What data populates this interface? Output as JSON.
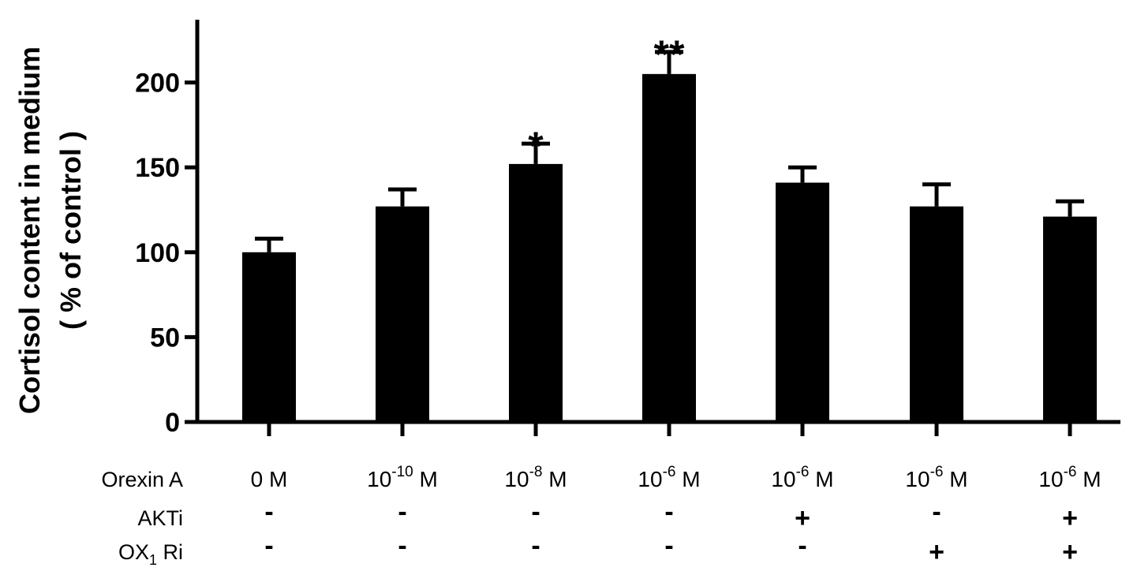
{
  "chart_data": {
    "type": "bar",
    "ylabel_line1": "Cortisol content in medium",
    "ylabel_line2": "( % of control )",
    "ylim": [
      0,
      230
    ],
    "yticks": [
      0,
      50,
      100,
      150,
      200
    ],
    "legend": "none",
    "grid": false,
    "categories": [
      {
        "base": "0 M",
        "exp": "",
        "unit": ""
      },
      {
        "base": "10",
        "exp": "-10",
        "unit": " M"
      },
      {
        "base": "10",
        "exp": "-8",
        "unit": " M"
      },
      {
        "base": "10",
        "exp": "-6",
        "unit": " M"
      },
      {
        "base": "10",
        "exp": "-6",
        "unit": " M"
      },
      {
        "base": "10",
        "exp": "-6",
        "unit": " M"
      },
      {
        "base": "10",
        "exp": "-6",
        "unit": " M"
      }
    ],
    "values": [
      100,
      127,
      152,
      205,
      141,
      127,
      121
    ],
    "errors": [
      8,
      10,
      12,
      13,
      9,
      13,
      9
    ],
    "significance": [
      "",
      "",
      "*",
      "**",
      "",
      "",
      ""
    ],
    "condition_rows": [
      {
        "label": "Orexin A",
        "label_sub": "",
        "label_suffix": ""
      },
      {
        "label": "AKTi",
        "label_sub": "",
        "label_suffix": "",
        "signs": [
          "-",
          "-",
          "-",
          "-",
          "+",
          "-",
          "+"
        ]
      },
      {
        "label": "OX",
        "label_sub": "1",
        "label_suffix": " Ri",
        "signs": [
          "-",
          "-",
          "-",
          "-",
          "-",
          "+",
          "+"
        ]
      }
    ],
    "bar_color": "#000000"
  }
}
